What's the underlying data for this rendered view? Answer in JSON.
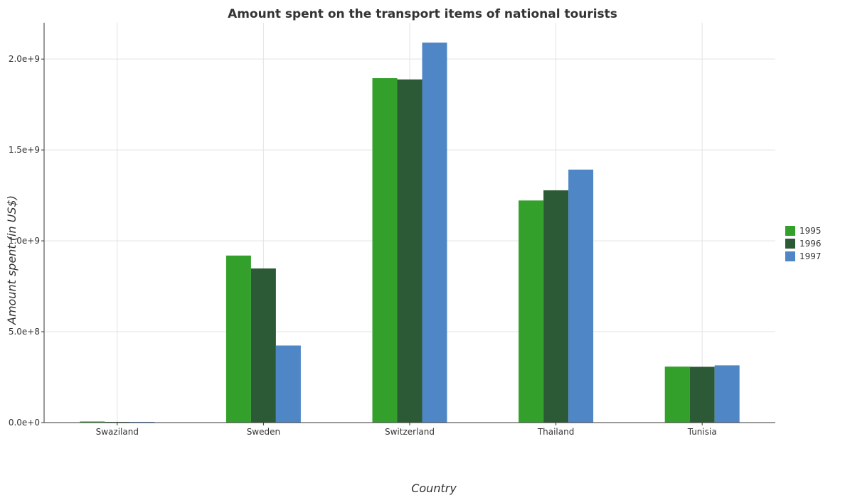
{
  "chart_data": {
    "type": "bar",
    "title": "Amount spent on the transport items of national tourists",
    "xlabel": "Country",
    "ylabel": "Amount spent (in US$)",
    "categories": [
      "Swaziland",
      "Sweden",
      "Switzerland",
      "Thailand",
      "Tunisia"
    ],
    "series": [
      {
        "name": "1995",
        "color": "#33a02c",
        "values": [
          6000000,
          919000000,
          1895000000,
          1222000000,
          308000000
        ]
      },
      {
        "name": "1996",
        "color": "#2d5a36",
        "values": [
          4000000,
          848000000,
          1888000000,
          1278000000,
          307000000
        ]
      },
      {
        "name": "1997",
        "color": "#4f86c6",
        "values": [
          4000000,
          424000000,
          2091000000,
          1392000000,
          315000000
        ]
      }
    ],
    "ylim": [
      0,
      2200000000
    ],
    "yticks": [
      0,
      500000000,
      1000000000,
      1500000000,
      2000000000
    ],
    "ytick_labels": [
      "0.0e+0",
      "5.0e+8",
      "1.0e+9",
      "1.5e+9",
      "2.0e+9"
    ],
    "grid": true,
    "legend_position": "right"
  }
}
